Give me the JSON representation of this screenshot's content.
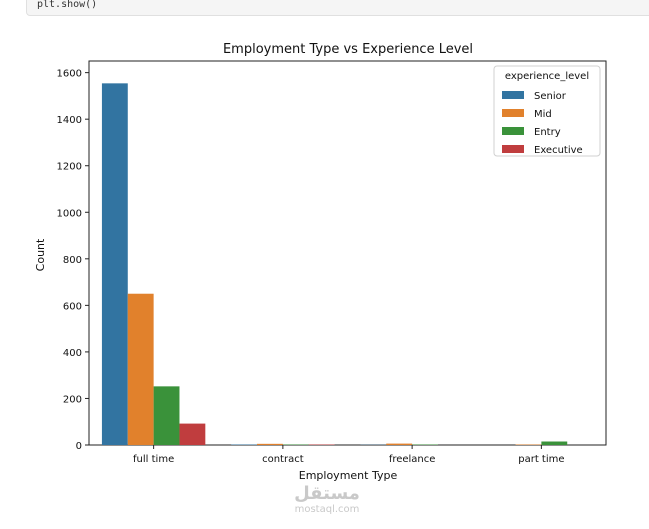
{
  "notebook": {
    "code_text": "plt.show()"
  },
  "watermark": {
    "arabic": "مستقل",
    "latin": "mostaql.com"
  },
  "chart_data": {
    "type": "bar",
    "title": "Employment Type vs Experience Level",
    "xlabel": "Employment Type",
    "ylabel": "Count",
    "categories": [
      "full time",
      "contract",
      "freelance",
      "part time"
    ],
    "ylim": [
      0,
      1650
    ],
    "yticks": [
      0,
      200,
      400,
      600,
      800,
      1000,
      1200,
      1400,
      1600
    ],
    "legend": {
      "title": "experience_level",
      "placement": "top-right"
    },
    "grid": false,
    "series": [
      {
        "name": "Senior",
        "color": "#3274a1",
        "values": [
          1554,
          2,
          1,
          0
        ]
      },
      {
        "name": "Mid",
        "color": "#e1812c",
        "values": [
          650,
          5,
          6,
          2
        ]
      },
      {
        "name": "Entry",
        "color": "#3a923a",
        "values": [
          252,
          2,
          2,
          15
        ]
      },
      {
        "name": "Executive",
        "color": "#c03d3e",
        "values": [
          92,
          2,
          0,
          0
        ]
      }
    ]
  }
}
